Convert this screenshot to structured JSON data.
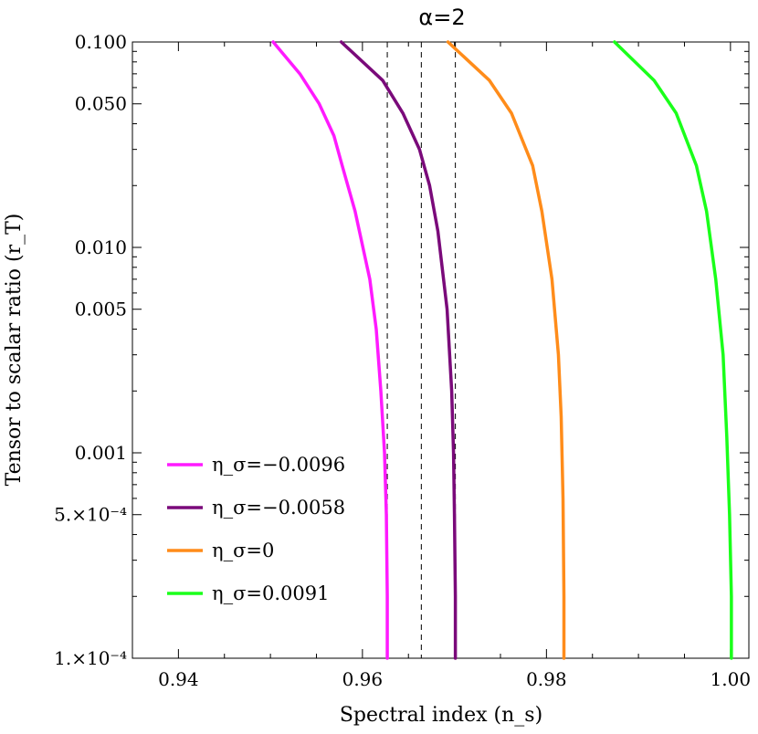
{
  "chart_data": {
    "type": "line",
    "title": "α=2",
    "xlabel": "Spectral index (n_s)",
    "ylabel": "Tensor to scalar ratio (r_T)",
    "xlim": [
      0.935,
      1.002
    ],
    "ylim": [
      0.0001,
      0.1
    ],
    "y_scale": "log",
    "grid": false,
    "legend_position": "bottom-left",
    "x_ticks": [
      "0.94",
      "0.96",
      "0.98",
      "1.00"
    ],
    "x_tick_values": [
      0.94,
      0.96,
      0.98,
      1.0
    ],
    "y_ticks": [
      "1.×10⁻⁴",
      "5.×10⁻⁴",
      "0.001",
      "0.005",
      "0.010",
      "0.050",
      "0.100"
    ],
    "y_tick_values": [
      0.0001,
      0.0005,
      0.001,
      0.005,
      0.01,
      0.05,
      0.1
    ],
    "reference_lines_x": [
      0.9627,
      0.9664,
      0.9701
    ],
    "series": [
      {
        "name": "η_σ=−0.0096",
        "color": "#ff1aff",
        "x": [
          0.9503,
          0.9532,
          0.9553,
          0.9569,
          0.9578,
          0.9592,
          0.9608,
          0.9615,
          0.962,
          0.9624,
          0.9626,
          0.9627,
          0.9627
        ],
        "y": [
          0.1,
          0.07,
          0.05,
          0.035,
          0.025,
          0.015,
          0.007,
          0.004,
          0.002,
          0.001,
          0.0005,
          0.0002,
          0.0001
        ]
      },
      {
        "name": "η_σ=−0.0058",
        "color": "#7a0a7a",
        "x": [
          0.9577,
          0.9622,
          0.9644,
          0.9662,
          0.9673,
          0.9682,
          0.9692,
          0.9697,
          0.9699,
          0.97,
          0.9701,
          0.9701
        ],
        "y": [
          0.1,
          0.065,
          0.045,
          0.03,
          0.02,
          0.012,
          0.005,
          0.002,
          0.001,
          0.0005,
          0.0002,
          0.0001
        ]
      },
      {
        "name": "η_σ=0",
        "color": "#ff8c1a",
        "x": [
          0.9693,
          0.9738,
          0.9762,
          0.9785,
          0.9795,
          0.9806,
          0.9813,
          0.9816,
          0.9818,
          0.9819,
          0.9819
        ],
        "y": [
          0.1,
          0.065,
          0.045,
          0.025,
          0.015,
          0.007,
          0.003,
          0.0015,
          0.0006,
          0.0002,
          0.0001
        ]
      },
      {
        "name": "η_σ=0.0091",
        "color": "#1aff1a",
        "x": [
          0.9874,
          0.9917,
          0.9941,
          0.9963,
          0.9974,
          0.9984,
          0.9992,
          0.9996,
          0.9999,
          1.0001,
          1.0001
        ],
        "y": [
          0.1,
          0.065,
          0.045,
          0.025,
          0.015,
          0.007,
          0.003,
          0.0012,
          0.0005,
          0.0002,
          0.0001
        ]
      }
    ]
  }
}
